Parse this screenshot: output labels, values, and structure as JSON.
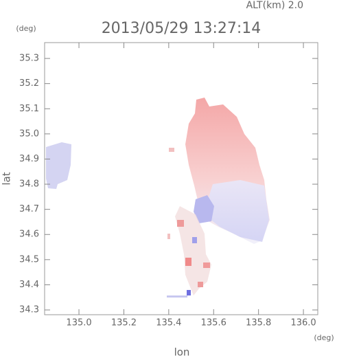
{
  "chart_data": {
    "type": "map",
    "title": "2013/05/29 13:27:14",
    "subtitle": "ALT(km) 2.0",
    "y_unit": "(deg)",
    "x_unit": "(deg)",
    "x_label": "lon",
    "y_label": "lat",
    "xlim": [
      134.847,
      136.064
    ],
    "ylim": [
      34.281,
      35.363
    ],
    "xticks": [
      {
        "value": 135,
        "label": "135.0"
      },
      135.2,
      135.4,
      135.6,
      135.8,
      {
        "value": 136,
        "label": "136.0"
      }
    ],
    "yticks": [
      34.3,
      34.4,
      34.5,
      34.6,
      34.7,
      34.8,
      34.9,
      {
        "value": 35,
        "label": "35.0"
      },
      35.1,
      35.2,
      35.3
    ]
  }
}
